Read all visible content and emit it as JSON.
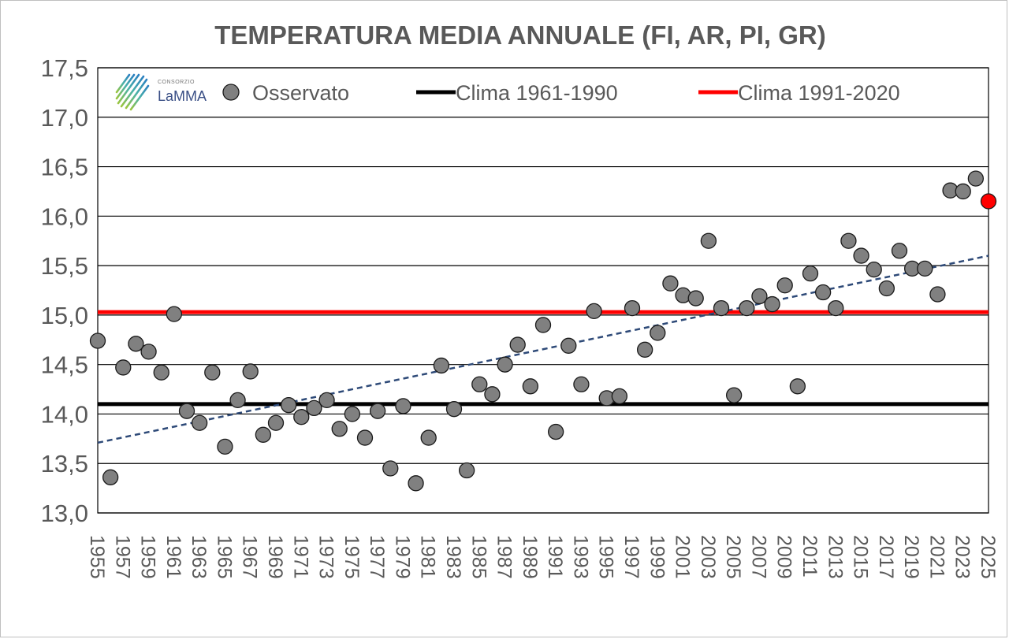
{
  "chart_data": {
    "type": "scatter",
    "title": "TEMPERATURA MEDIA ANNUALE (FI, AR, PI, GR)",
    "xlabel": "",
    "ylabel": "",
    "ylim": [
      13.0,
      17.5
    ],
    "yticks": [
      "13,0",
      "13,5",
      "14,0",
      "14,5",
      "15,0",
      "15,5",
      "16,0",
      "16,5",
      "17,0",
      "17,5"
    ],
    "xlim": [
      1955,
      2025
    ],
    "xticks": [
      "1955",
      "1957",
      "1959",
      "1961",
      "1963",
      "1965",
      "1967",
      "1969",
      "1971",
      "1973",
      "1975",
      "1977",
      "1979",
      "1981",
      "1983",
      "1985",
      "1987",
      "1989",
      "1991",
      "1993",
      "1995",
      "1997",
      "1999",
      "2001",
      "2003",
      "2005",
      "2007",
      "2009",
      "2011",
      "2013",
      "2015",
      "2017",
      "2019",
      "2021",
      "2023",
      "2025"
    ],
    "grid": true,
    "series": [
      {
        "name": "Osservato",
        "color": "#808080",
        "x": [
          1955,
          1956,
          1957,
          1958,
          1959,
          1960,
          1961,
          1962,
          1963,
          1964,
          1965,
          1966,
          1967,
          1968,
          1969,
          1970,
          1971,
          1972,
          1973,
          1974,
          1975,
          1976,
          1977,
          1978,
          1979,
          1980,
          1981,
          1982,
          1983,
          1984,
          1985,
          1986,
          1987,
          1988,
          1989,
          1990,
          1991,
          1992,
          1993,
          1994,
          1995,
          1996,
          1997,
          1998,
          1999,
          2000,
          2001,
          2002,
          2003,
          2004,
          2005,
          2006,
          2007,
          2008,
          2009,
          2010,
          2011,
          2012,
          2013,
          2014,
          2015,
          2016,
          2017,
          2018,
          2019,
          2020,
          2021,
          2022,
          2023,
          2024
        ],
        "values": [
          14.74,
          13.36,
          14.47,
          14.71,
          14.63,
          14.42,
          15.01,
          14.03,
          13.91,
          14.42,
          13.67,
          14.14,
          14.43,
          13.79,
          13.91,
          14.09,
          13.97,
          14.06,
          14.14,
          13.85,
          14.0,
          13.76,
          14.03,
          13.45,
          14.08,
          13.3,
          13.76,
          14.49,
          14.05,
          13.43,
          14.3,
          14.2,
          14.5,
          14.7,
          14.28,
          14.9,
          13.82,
          14.69,
          14.3,
          15.04,
          14.16,
          14.18,
          15.07,
          14.65,
          14.82,
          15.32,
          15.2,
          15.17,
          15.75,
          15.07,
          14.19,
          15.07,
          15.19,
          15.11,
          15.3,
          14.28,
          15.42,
          15.23,
          15.07,
          15.75,
          15.6,
          15.46,
          15.27,
          15.65,
          15.47,
          15.47,
          15.21,
          16.26,
          16.25,
          16.38
        ]
      },
      {
        "name": "2025",
        "color": "#ff0000",
        "x": [
          2025
        ],
        "values": [
          16.15
        ]
      },
      {
        "name": "Clima 1961-1990",
        "type": "hline",
        "color": "#000000",
        "value": 14.1
      },
      {
        "name": "Clima 1991-2020",
        "type": "hline",
        "color": "#ff0000",
        "value": 15.03
      },
      {
        "name": "trend",
        "type": "trendline",
        "color": "#2e4a78",
        "x": [
          1955,
          2025
        ],
        "values": [
          13.71,
          15.6
        ]
      }
    ],
    "legend": {
      "position": "top",
      "entries": [
        "Osservato",
        "Clima 1961-1990",
        "Clima 1991-2020"
      ]
    }
  },
  "logo": {
    "small_text": "CONSORZIO",
    "big_text": "LaMMA"
  }
}
